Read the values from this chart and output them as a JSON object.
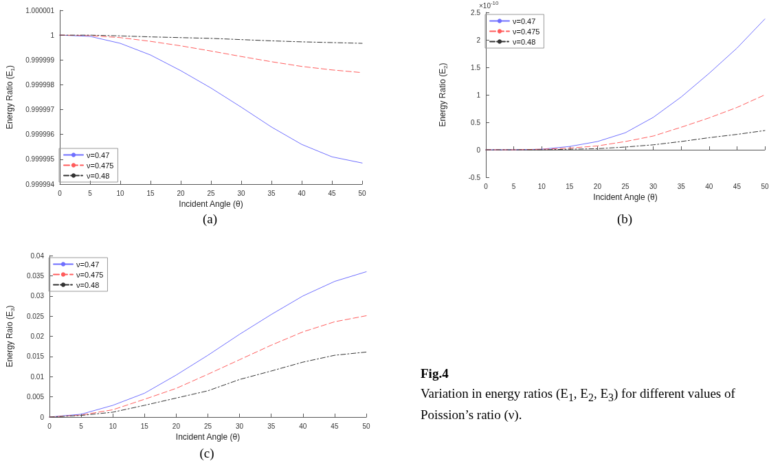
{
  "chart_data": [
    {
      "type": "line",
      "xlabel": "Incident Angle (θ)",
      "ylabel": "Energy Ratio (E$_{1}$)",
      "annotations": [
        "(a)"
      ],
      "legend": "bottom left",
      "marker": "none",
      "x": [
        0,
        5,
        10,
        15,
        20,
        25,
        30,
        35,
        40,
        45,
        50
      ],
      "xlim": [
        0,
        50
      ],
      "xticks": [
        0,
        5,
        10,
        15,
        20,
        25,
        30,
        35,
        40,
        45,
        50
      ],
      "ylim": [
        0.999994,
        1.000001
      ],
      "yticks": [
        0.999994,
        0.999995,
        0.999996,
        0.999997,
        0.999998,
        0.999999,
        1,
        1.000001
      ],
      "series": [
        {
          "name": "ν=0.47",
          "color": "#6f6fff",
          "line_style": "solid",
          "values": [
            1,
            0.99999995,
            0.99999967,
            0.9999992,
            0.99999857,
            0.99999787,
            0.9999971,
            0.9999963,
            0.9999956,
            0.9999951,
            0.99999485
          ]
        },
        {
          "name": "ν=0.475",
          "color": "#ff5c5c",
          "line_style": "dashed",
          "values": [
            1,
            0.99999998,
            0.9999999,
            0.99999975,
            0.99999957,
            0.99999936,
            0.99999914,
            0.99999893,
            0.99999874,
            0.9999986,
            0.99999849
          ]
        },
        {
          "name": "ν=0.48",
          "color": "#333333",
          "line_style": "dashdot",
          "values": [
            1,
            1,
            0.99999997,
            0.99999993,
            0.9999999,
            0.99999987,
            0.99999982,
            0.99999977,
            0.99999973,
            0.9999997,
            0.99999967
          ]
        }
      ]
    },
    {
      "type": "line",
      "xlabel": "Incident Angle (θ)",
      "ylabel": "Energy Ratio (E$_{2}$)",
      "annotations": [
        "(b)",
        "×10$^{-10}$"
      ],
      "legend": "top left",
      "marker": "none",
      "x": [
        0,
        5,
        10,
        15,
        20,
        25,
        30,
        35,
        40,
        45,
        50
      ],
      "xlim": [
        0,
        50
      ],
      "xticks": [
        0,
        5,
        10,
        15,
        20,
        25,
        30,
        35,
        40,
        45,
        50
      ],
      "ylim": [
        -0.5,
        2.5
      ],
      "yticks": [
        -0.5,
        0,
        0.5,
        1,
        1.5,
        2,
        2.5
      ],
      "series": [
        {
          "name": "ν=0.47",
          "color": "#6f6fff",
          "line_style": "solid",
          "values": [
            0,
            0,
            0.01,
            0.06,
            0.15,
            0.31,
            0.59,
            0.96,
            1.39,
            1.85,
            2.38
          ]
        },
        {
          "name": "ν=0.475",
          "color": "#ff5c5c",
          "line_style": "dashed",
          "values": [
            0,
            0,
            0.01,
            0.03,
            0.07,
            0.15,
            0.25,
            0.41,
            0.58,
            0.77,
            1.0
          ]
        },
        {
          "name": "ν=0.48",
          "color": "#333333",
          "line_style": "dashdot",
          "values": [
            0,
            0,
            0,
            0.01,
            0.02,
            0.05,
            0.09,
            0.15,
            0.22,
            0.28,
            0.35
          ]
        }
      ]
    },
    {
      "type": "line",
      "xlabel": "Incident Angle (θ)",
      "ylabel": "Energy Raio (E$_{3}$)",
      "annotations": [
        "(c)"
      ],
      "legend": "top left",
      "marker": "none",
      "x": [
        0,
        5,
        10,
        15,
        20,
        25,
        30,
        35,
        40,
        45,
        50
      ],
      "xlim": [
        0,
        50
      ],
      "xticks": [
        0,
        5,
        10,
        15,
        20,
        25,
        30,
        35,
        40,
        45,
        50
      ],
      "ylim": [
        0,
        0.04
      ],
      "yticks": [
        0,
        0.005,
        0.01,
        0.015,
        0.02,
        0.025,
        0.03,
        0.035,
        0.04
      ],
      "series": [
        {
          "name": "ν=0.47",
          "color": "#6f6fff",
          "line_style": "solid",
          "values": [
            0,
            0.0007,
            0.0029,
            0.0059,
            0.0104,
            0.0153,
            0.0205,
            0.0254,
            0.03,
            0.0336,
            0.036
          ]
        },
        {
          "name": "ν=0.475",
          "color": "#ff5c5c",
          "line_style": "dashed",
          "values": [
            0,
            0.0005,
            0.0018,
            0.0044,
            0.0071,
            0.0106,
            0.0142,
            0.0178,
            0.0211,
            0.0236,
            0.0251
          ]
        },
        {
          "name": "ν=0.48",
          "color": "#333333",
          "line_style": "dashdot",
          "values": [
            0,
            0.0004,
            0.0012,
            0.0029,
            0.0047,
            0.0065,
            0.0093,
            0.0114,
            0.0136,
            0.0153,
            0.0161
          ]
        }
      ]
    },
    {
      "type": "other",
      "title": "Fig.4",
      "subtitle": "Variation in energy ratios (E$_{1}$, E$_{2}$, E$_{3}$) for different values of Poission’s ratio (ν)."
    }
  ]
}
